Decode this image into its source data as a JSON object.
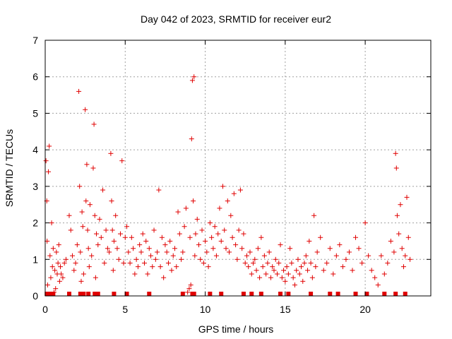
{
  "chart_data": {
    "type": "scatter",
    "title": "Day 042 of 2023, SRMTID for receiver eur2",
    "xlabel": "GPS time / hours",
    "ylabel": "SRMTID / TECUs",
    "xlim": [
      0,
      24.1
    ],
    "ylim": [
      0,
      7
    ],
    "xticks": [
      "0",
      "5",
      "10",
      "15",
      "20"
    ],
    "yticks": [
      "0",
      "1",
      "2",
      "3",
      "4",
      "5",
      "6",
      "7"
    ],
    "grid": true,
    "marker": "plus",
    "color": "#e00000",
    "series": [
      {
        "name": "eur2",
        "x": [
          0.05,
          0.1,
          0.12,
          0.15,
          0.2,
          0.25,
          0.3,
          0.35,
          0.4,
          0.45,
          0.5,
          0.55,
          0.6,
          0.65,
          0.7,
          0.75,
          0.8,
          0.85,
          0.9,
          0.95,
          1.0,
          1.1,
          1.2,
          1.3,
          1.5,
          1.6,
          1.7,
          1.8,
          1.9,
          2.0,
          2.1,
          2.15,
          2.2,
          2.25,
          2.3,
          2.35,
          2.4,
          2.5,
          2.55,
          2.6,
          2.65,
          2.7,
          2.75,
          2.8,
          2.9,
          3.0,
          3.05,
          3.1,
          3.15,
          3.2,
          3.3,
          3.4,
          3.5,
          3.6,
          3.7,
          3.8,
          3.9,
          4.0,
          4.1,
          4.15,
          4.2,
          4.25,
          4.3,
          4.4,
          4.5,
          4.6,
          4.7,
          4.8,
          4.9,
          5.0,
          5.1,
          5.2,
          5.3,
          5.4,
          5.5,
          5.6,
          5.7,
          5.8,
          5.9,
          6.0,
          6.1,
          6.2,
          6.3,
          6.4,
          6.5,
          6.6,
          6.7,
          6.8,
          6.9,
          7.0,
          7.1,
          7.2,
          7.3,
          7.4,
          7.5,
          7.6,
          7.7,
          7.8,
          7.9,
          8.0,
          8.1,
          8.2,
          8.3,
          8.4,
          8.5,
          8.6,
          8.7,
          8.8,
          8.9,
          9.0,
          9.05,
          9.1,
          9.15,
          9.2,
          9.25,
          9.3,
          9.35,
          9.4,
          9.5,
          9.6,
          9.7,
          9.8,
          9.9,
          10.0,
          10.1,
          10.2,
          10.3,
          10.4,
          10.5,
          10.6,
          10.7,
          10.8,
          10.9,
          11.0,
          11.1,
          11.2,
          11.3,
          11.4,
          11.5,
          11.6,
          11.7,
          11.8,
          11.9,
          12.0,
          12.1,
          12.2,
          12.3,
          12.4,
          12.5,
          12.6,
          12.7,
          12.8,
          12.9,
          13.0,
          13.1,
          13.2,
          13.3,
          13.4,
          13.5,
          13.6,
          13.7,
          13.8,
          13.9,
          14.0,
          14.1,
          14.2,
          14.3,
          14.4,
          14.5,
          14.6,
          14.7,
          14.8,
          14.9,
          15.0,
          15.1,
          15.2,
          15.3,
          15.4,
          15.5,
          15.6,
          15.7,
          15.8,
          15.9,
          16.0,
          16.1,
          16.2,
          16.3,
          16.4,
          16.5,
          16.6,
          16.7,
          16.8,
          16.9,
          17.0,
          17.2,
          17.4,
          17.6,
          17.8,
          18.0,
          18.2,
          18.4,
          18.6,
          18.8,
          19.0,
          19.2,
          19.4,
          19.6,
          19.8,
          20.0,
          20.2,
          20.4,
          20.6,
          20.8,
          21.0,
          21.2,
          21.4,
          21.6,
          21.8,
          21.9,
          21.95,
          22.0,
          22.1,
          22.2,
          22.3,
          22.4,
          22.5,
          22.6,
          22.7,
          22.8,
          0.1,
          0.3,
          2.2,
          2.4,
          3.1,
          9.2,
          9.3,
          16.6,
          19.4,
          21.9,
          22.5,
          2.7,
          4.3,
          12.4,
          13.5,
          1.5,
          11.0,
          14.7,
          18.3,
          20.1,
          0.5,
          3.3,
          6.5,
          10.3,
          15.2,
          17.8,
          21.2,
          5.1,
          8.6,
          12.9
        ],
        "y": [
          3.7,
          2.6,
          1.5,
          0.3,
          3.4,
          4.1,
          1.1,
          0.5,
          2.0,
          0.8,
          1.3,
          0.1,
          0.7,
          0.2,
          1.2,
          0.6,
          0.9,
          1.4,
          0.4,
          0.8,
          0.6,
          0.5,
          0.9,
          1.0,
          2.2,
          1.8,
          1.1,
          0.7,
          0.9,
          1.4,
          5.6,
          3.0,
          1.2,
          0.4,
          2.3,
          1.9,
          0.6,
          5.1,
          2.6,
          3.6,
          1.8,
          1.3,
          0.8,
          2.5,
          1.1,
          3.5,
          4.7,
          2.2,
          0.5,
          1.7,
          1.4,
          2.1,
          1.6,
          2.9,
          0.9,
          1.8,
          1.3,
          1.2,
          3.9,
          2.6,
          1.8,
          0.7,
          1.5,
          2.2,
          1.3,
          1.0,
          1.7,
          3.7,
          0.9,
          1.6,
          1.9,
          1.2,
          0.9,
          1.6,
          1.3,
          0.6,
          1.0,
          0.8,
          1.4,
          1.2,
          1.7,
          0.9,
          1.5,
          0.6,
          1.3,
          1.1,
          0.8,
          1.8,
          1.0,
          1.2,
          2.9,
          0.8,
          1.6,
          0.5,
          1.4,
          1.2,
          0.9,
          1.5,
          0.7,
          1.1,
          1.3,
          0.8,
          2.3,
          1.7,
          1.0,
          1.2,
          1.9,
          2.4,
          0.1,
          0.2,
          1.6,
          0.3,
          4.3,
          5.9,
          2.6,
          6.0,
          1.1,
          1.7,
          2.1,
          1.4,
          1.0,
          1.8,
          0.9,
          1.5,
          1.2,
          0.8,
          2.0,
          1.6,
          1.3,
          1.9,
          1.1,
          1.7,
          2.4,
          1.5,
          3.0,
          1.8,
          1.3,
          2.6,
          1.2,
          2.2,
          1.6,
          2.8,
          1.4,
          1.0,
          1.8,
          2.9,
          1.3,
          1.7,
          0.9,
          1.1,
          0.8,
          1.2,
          0.6,
          0.9,
          1.0,
          0.7,
          1.3,
          0.5,
          1.6,
          0.8,
          1.1,
          0.6,
          0.9,
          1.2,
          0.5,
          0.8,
          0.7,
          1.0,
          0.6,
          0.9,
          1.4,
          0.5,
          0.7,
          0.4,
          0.8,
          0.6,
          1.3,
          0.9,
          0.5,
          0.3,
          0.7,
          1.0,
          0.6,
          0.8,
          0.4,
          0.9,
          1.1,
          0.7,
          1.5,
          0.9,
          0.5,
          2.2,
          0.8,
          1.2,
          1.6,
          0.7,
          0.9,
          1.3,
          0.6,
          1.1,
          1.4,
          0.8,
          1.0,
          1.2,
          0.7,
          1.6,
          1.3,
          0.9,
          2.0,
          1.1,
          0.7,
          0.5,
          0.3,
          1.1,
          0.6,
          0.9,
          1.5,
          1.2,
          3.9,
          3.5,
          2.2,
          1.7,
          2.5,
          1.3,
          0.8,
          1.1,
          2.7,
          1.6,
          1.0,
          0.0,
          0.0,
          0.0,
          0.0,
          0.0,
          0.0,
          0.0,
          0.0,
          0.0,
          0.0,
          0.0,
          0.0,
          0.0,
          0.0,
          0.0,
          0.0,
          0.0,
          0.0,
          0.0,
          0.0,
          0.0,
          0.0,
          0.0,
          0.0,
          0.0,
          0.0,
          0.0,
          0.0,
          0.0,
          0.0
        ]
      }
    ]
  }
}
